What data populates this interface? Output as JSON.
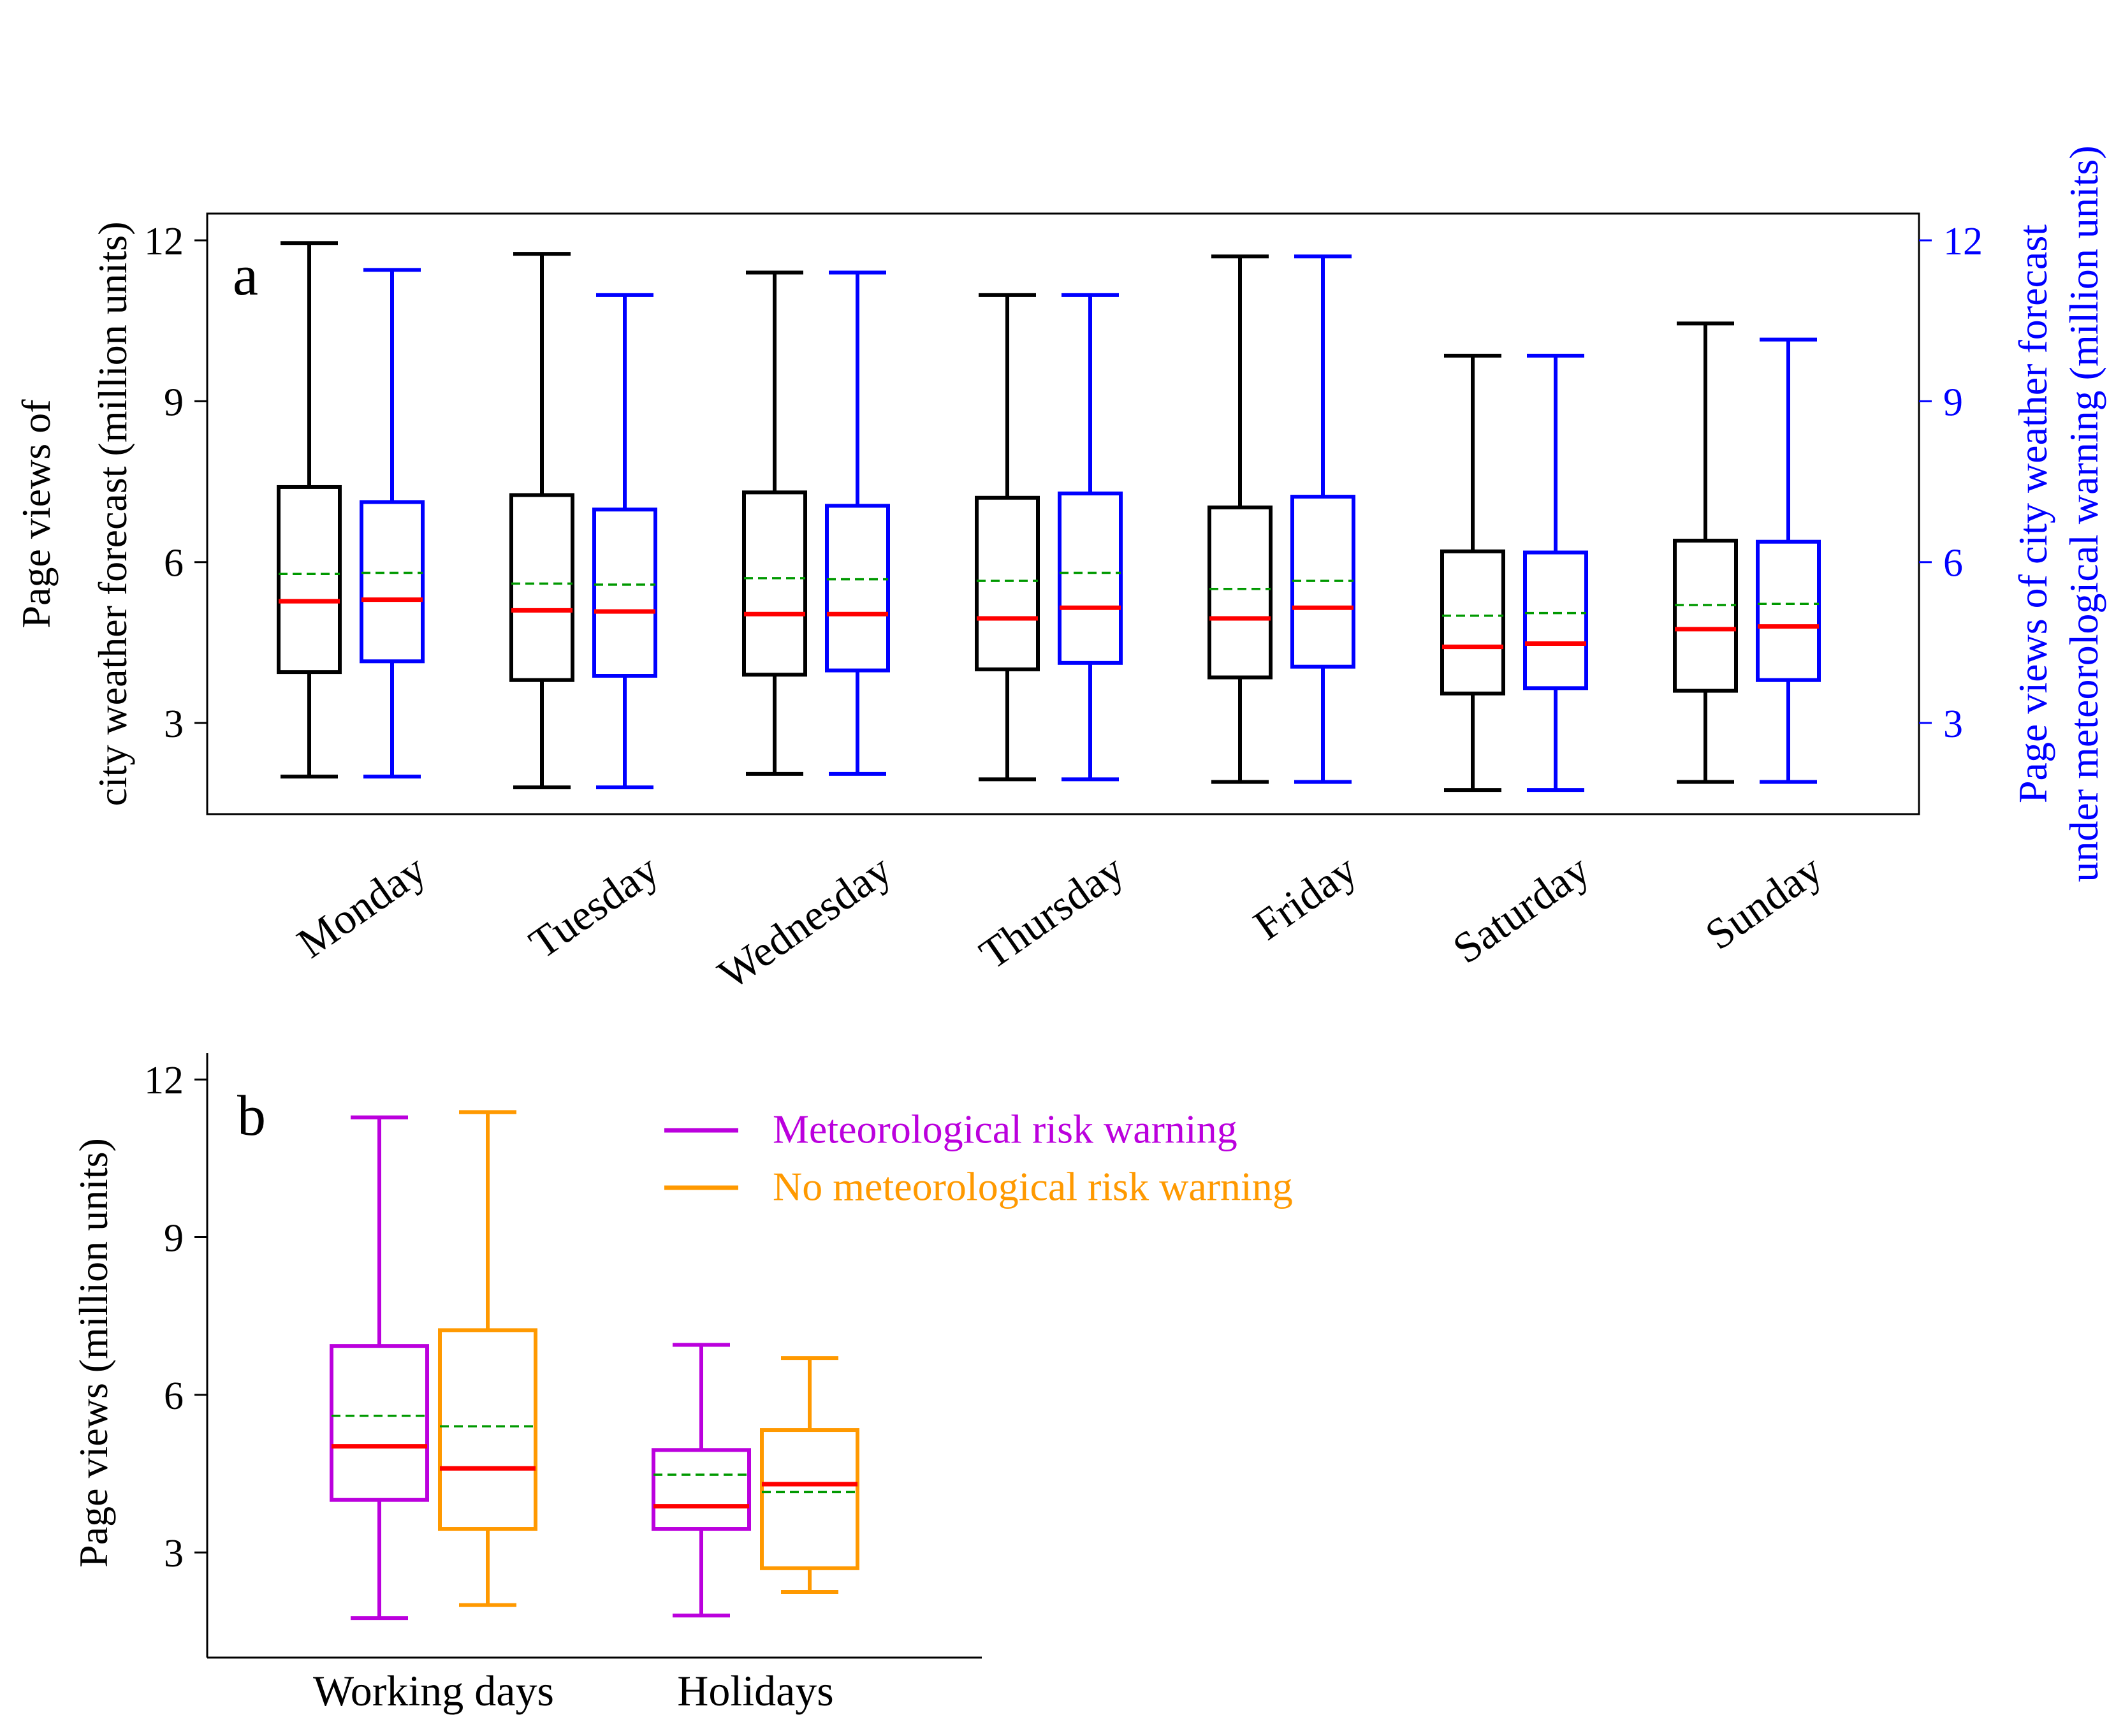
{
  "chart_data": [
    {
      "type": "box",
      "panel_label": "a",
      "categories": [
        "Monday",
        "Tuesday",
        "Wednesday",
        "Thursday",
        "Friday",
        "Saturday",
        "Sunday"
      ],
      "ylabel_left": [
        "Page views of",
        "city weather forecast (million units)"
      ],
      "ylabel_right": [
        "Page views of city weather forecast",
        "under meteorological warning (million units)"
      ],
      "ylim": [
        1.3,
        12.5
      ],
      "yticks": [
        3,
        6,
        9,
        12
      ],
      "series": [
        {
          "name": "Page views of city weather forecast",
          "axis": "left",
          "color": "#000000",
          "boxes": [
            {
              "min": 2.0,
              "q1": 3.95,
              "median": 5.27,
              "mean": 5.78,
              "q3": 7.4,
              "max": 11.95
            },
            {
              "min": 1.8,
              "q1": 3.8,
              "median": 5.1,
              "mean": 5.6,
              "q3": 7.25,
              "max": 11.75
            },
            {
              "min": 2.05,
              "q1": 3.9,
              "median": 5.03,
              "mean": 5.7,
              "q3": 7.3,
              "max": 11.4
            },
            {
              "min": 1.95,
              "q1": 4.0,
              "median": 4.95,
              "mean": 5.65,
              "q3": 7.2,
              "max": 10.98
            },
            {
              "min": 1.9,
              "q1": 3.85,
              "median": 4.95,
              "mean": 5.5,
              "q3": 7.02,
              "max": 11.7
            },
            {
              "min": 1.75,
              "q1": 3.55,
              "median": 4.42,
              "mean": 5.0,
              "q3": 6.2,
              "max": 9.85
            },
            {
              "min": 1.9,
              "q1": 3.6,
              "median": 4.75,
              "mean": 5.2,
              "q3": 6.4,
              "max": 10.45
            }
          ]
        },
        {
          "name": "Page views of city weather forecast under meteorological warning",
          "axis": "right",
          "color": "#0000ff",
          "boxes": [
            {
              "min": 2.0,
              "q1": 4.15,
              "median": 5.3,
              "mean": 5.8,
              "q3": 7.12,
              "max": 11.45
            },
            {
              "min": 1.8,
              "q1": 3.88,
              "median": 5.08,
              "mean": 5.58,
              "q3": 6.98,
              "max": 10.98
            },
            {
              "min": 2.05,
              "q1": 3.98,
              "median": 5.03,
              "mean": 5.68,
              "q3": 7.05,
              "max": 11.4
            },
            {
              "min": 1.95,
              "q1": 4.12,
              "median": 5.15,
              "mean": 5.8,
              "q3": 7.28,
              "max": 10.98
            },
            {
              "min": 1.9,
              "q1": 4.05,
              "median": 5.15,
              "mean": 5.65,
              "q3": 7.22,
              "max": 11.7
            },
            {
              "min": 1.75,
              "q1": 3.65,
              "median": 4.48,
              "mean": 5.05,
              "q3": 6.18,
              "max": 9.85
            },
            {
              "min": 1.9,
              "q1": 3.8,
              "median": 4.8,
              "mean": 5.22,
              "q3": 6.38,
              "max": 10.15
            }
          ]
        }
      ],
      "median_color": "#ff0000",
      "mean_color": "#009900"
    },
    {
      "type": "box",
      "panel_label": "b",
      "categories": [
        "Working days",
        "Holidays"
      ],
      "ylabel": "Page views (million units)",
      "ylim": [
        1.0,
        12.5
      ],
      "yticks": [
        3,
        6,
        9,
        12
      ],
      "legend_position": "top-right",
      "series": [
        {
          "name": "Meteorological risk warning",
          "color": "#bb00dd",
          "boxes": [
            {
              "min": 1.75,
              "q1": 4.0,
              "median": 5.02,
              "mean": 5.6,
              "q3": 6.93,
              "max": 11.28
            },
            {
              "min": 1.8,
              "q1": 3.45,
              "median": 3.88,
              "mean": 4.48,
              "q3": 4.95,
              "max": 6.95
            }
          ]
        },
        {
          "name": "No meteorological risk warning",
          "color": "#ff9900",
          "boxes": [
            {
              "min": 2.0,
              "q1": 3.45,
              "median": 4.6,
              "mean": 5.4,
              "q3": 7.23,
              "max": 11.38
            },
            {
              "min": 2.25,
              "q1": 2.7,
              "median": 4.3,
              "mean": 4.15,
              "q3": 5.33,
              "max": 6.7
            }
          ]
        }
      ],
      "median_color": "#ff0000",
      "mean_color": "#009900"
    }
  ]
}
